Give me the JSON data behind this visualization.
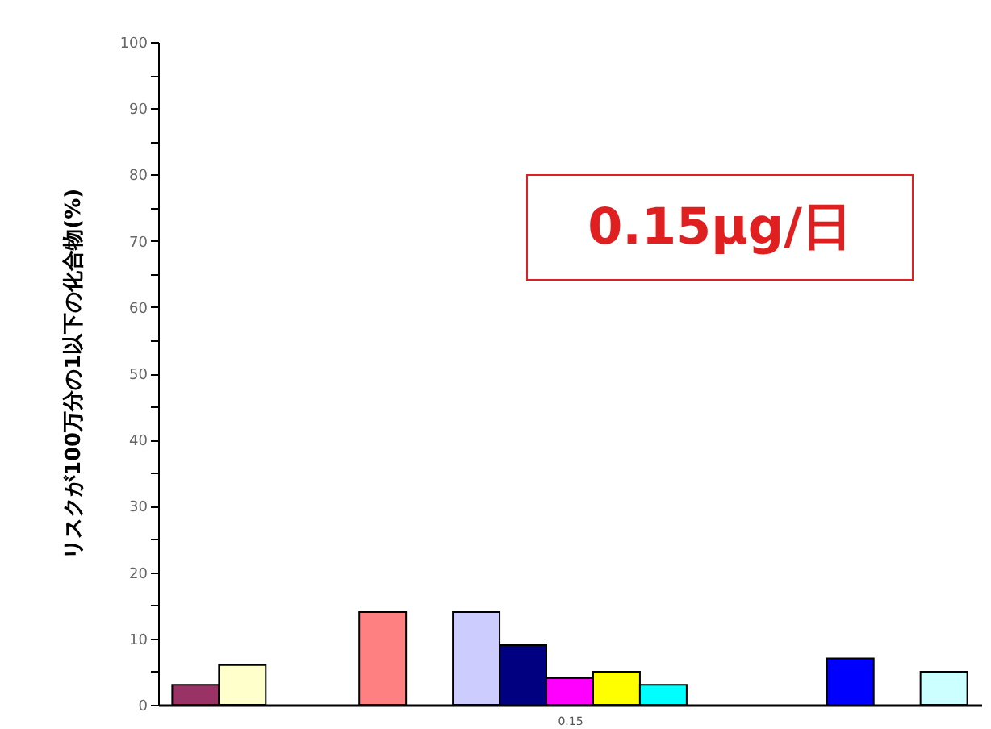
{
  "chart_data": {
    "type": "bar",
    "categories": [
      null,
      null,
      null,
      null,
      null,
      null,
      null,
      null,
      null,
      null,
      null,
      null,
      null,
      null,
      null,
      null,
      null
    ],
    "values": [
      3,
      6,
      null,
      null,
      14,
      null,
      14,
      9,
      4,
      5,
      3,
      null,
      null,
      null,
      7,
      null,
      5
    ],
    "colors": [
      "#993366",
      "#ffffcc",
      null,
      null,
      "#ff8080",
      null,
      "#ccccff",
      "#000080",
      "#ff00ff",
      "#ffff00",
      "#00ffff",
      null,
      null,
      null,
      "#0000ff",
      null,
      "#ccffff"
    ],
    "xlabel": "0.15",
    "ylabel": "リスクが100万分の1以下の化合物(%)",
    "ylim": [
      0,
      100
    ],
    "yticks": [
      0,
      {
        "value": 5,
        "label": null
      },
      10,
      {
        "value": 15,
        "label": null
      },
      20,
      {
        "value": 25,
        "label": null
      },
      30,
      {
        "value": 35,
        "label": null
      },
      40,
      {
        "value": 45,
        "label": null
      },
      50,
      {
        "value": 55,
        "label": null
      },
      60,
      {
        "value": 65,
        "label": null
      },
      70,
      {
        "value": 75,
        "label": null
      },
      80,
      {
        "value": 85,
        "label": null
      },
      90,
      {
        "value": 95,
        "label": null
      },
      100
    ],
    "annotations": [
      "0.15μg/日"
    ],
    "grid": false
  }
}
